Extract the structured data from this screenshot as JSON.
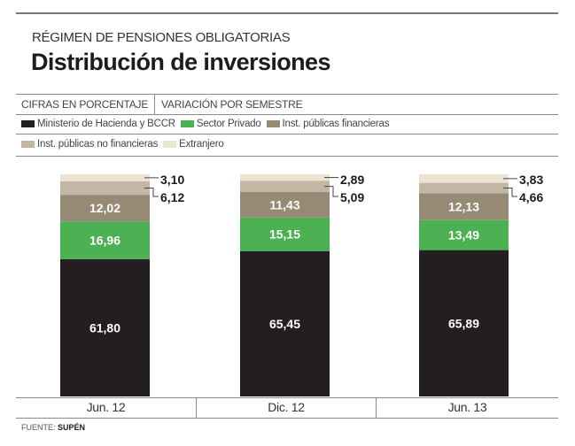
{
  "header": {
    "kicker": "RÉGIMEN DE PENSIONES OBLIGATORIAS",
    "title": "Distribución de inversiones"
  },
  "info_row": {
    "units": "CIFRAS EN PORCENTAJE",
    "variation": "VARIACIÓN POR SEMESTRE"
  },
  "footer": {
    "label": "FUENTE:",
    "source": "SUPÉN"
  },
  "chart_data": {
    "type": "bar",
    "stacked": true,
    "title": "Distribución de inversiones",
    "subtitle": "RÉGIMEN DE PENSIONES OBLIGATORIAS",
    "xlabel": "",
    "ylabel": "",
    "ylim": [
      0,
      100
    ],
    "grid": false,
    "legend_position": "top",
    "categories": [
      "Jun. 12",
      "Dic. 12",
      "Jun. 13"
    ],
    "series": [
      {
        "name": "Ministerio de Hacienda y BCCR",
        "color": "#231f20",
        "values": [
          61.8,
          65.45,
          65.89
        ],
        "labels": [
          "61,80",
          "65,45",
          "65,89"
        ],
        "label_position": "inside"
      },
      {
        "name": "Sector Privado",
        "color": "#4cb152",
        "values": [
          16.96,
          15.15,
          13.49
        ],
        "labels": [
          "16,96",
          "15,15",
          "13,49"
        ],
        "label_position": "inside"
      },
      {
        "name": "Inst. públicas financieras",
        "color": "#968a74",
        "values": [
          12.02,
          11.43,
          12.13
        ],
        "labels": [
          "12,02",
          "11,43",
          "12,13"
        ],
        "label_position": "inside"
      },
      {
        "name": "Inst. públicas no financieras",
        "color": "#c2b7a4",
        "values": [
          6.12,
          5.09,
          4.66
        ],
        "labels": [
          "6,12",
          "5,09",
          "4,66"
        ],
        "label_position": "outside"
      },
      {
        "name": "Extranjero",
        "color": "#ece3d2",
        "values": [
          3.1,
          2.89,
          3.83
        ],
        "labels": [
          "3,10",
          "2,89",
          "3,83"
        ],
        "label_position": "outside"
      }
    ]
  }
}
